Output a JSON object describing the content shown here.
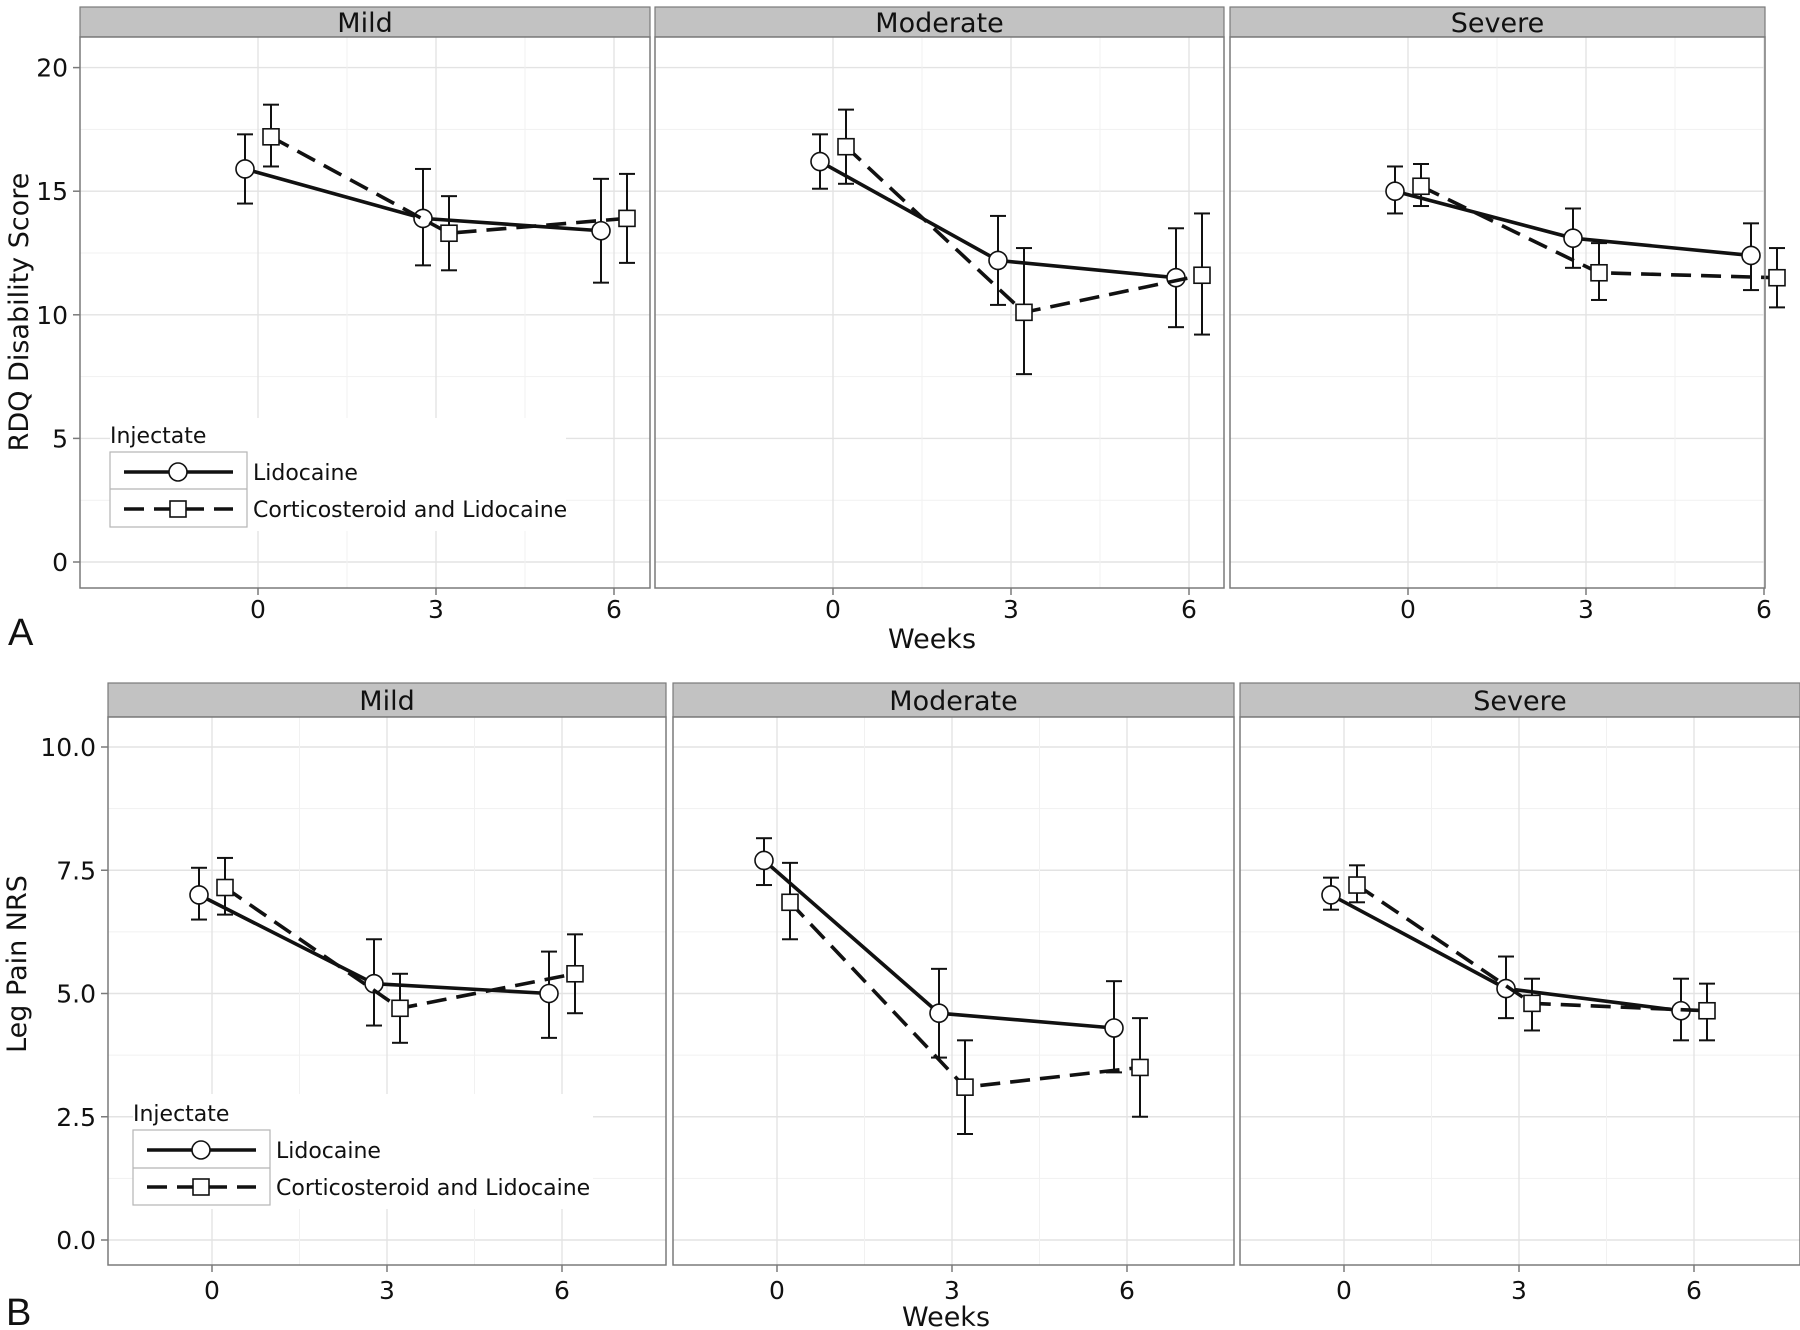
{
  "colors": {
    "strip_fill": "#c2c2c2",
    "panel_border": "#7a7a7a",
    "grid_major": "#e3e3e3",
    "grid_minor": "#f1f1f1",
    "series": "#111111",
    "marker_fill": "#ffffff"
  },
  "legend": {
    "title": "Injectate",
    "items": [
      {
        "label": "Lidocaine",
        "marker": "circle",
        "line": "solid"
      },
      {
        "label": "Corticosteroid and Lidocaine",
        "marker": "square",
        "line": "dashed"
      }
    ]
  },
  "chart_data": [
    {
      "type": "line",
      "panel_label": "A",
      "xlabel": "Weeks",
      "ylabel": "RDQ Disability Score",
      "x": [
        0,
        3,
        6
      ],
      "xticks": [
        "0",
        "3",
        "6"
      ],
      "yticks": [
        0,
        5,
        10,
        15,
        20
      ],
      "ylim": [
        -1,
        21
      ],
      "grid": true,
      "legend_position": "bottom-left",
      "facets": [
        {
          "name": "Mild",
          "series": [
            {
              "name": "Lidocaine",
              "values": [
                15.9,
                13.9,
                13.4
              ],
              "lower": [
                14.5,
                12.0,
                11.3
              ],
              "upper": [
                17.3,
                15.9,
                15.5
              ]
            },
            {
              "name": "Corticosteroid and Lidocaine",
              "values": [
                17.2,
                13.3,
                13.9
              ],
              "lower": [
                16.0,
                11.8,
                12.1
              ],
              "upper": [
                18.5,
                14.8,
                15.7
              ]
            }
          ]
        },
        {
          "name": "Moderate",
          "series": [
            {
              "name": "Lidocaine",
              "values": [
                16.2,
                12.2,
                11.5
              ],
              "lower": [
                15.1,
                10.4,
                9.5
              ],
              "upper": [
                17.3,
                14.0,
                13.5
              ]
            },
            {
              "name": "Corticosteroid and Lidocaine",
              "values": [
                16.8,
                10.1,
                11.6
              ],
              "lower": [
                15.3,
                7.6,
                9.2
              ],
              "upper": [
                18.3,
                12.7,
                14.1
              ]
            }
          ]
        },
        {
          "name": "Severe",
          "series": [
            {
              "name": "Lidocaine",
              "values": [
                15.0,
                13.1,
                12.4
              ],
              "lower": [
                14.1,
                11.9,
                11.0
              ],
              "upper": [
                16.0,
                14.3,
                13.7
              ]
            },
            {
              "name": "Corticosteroid and Lidocaine",
              "values": [
                15.2,
                11.7,
                11.5
              ],
              "lower": [
                14.4,
                10.6,
                10.3
              ],
              "upper": [
                16.1,
                12.9,
                12.7
              ]
            }
          ]
        }
      ]
    },
    {
      "type": "line",
      "panel_label": "B",
      "xlabel": "Weeks",
      "ylabel": "Leg Pain NRS",
      "x": [
        0,
        3,
        6
      ],
      "xticks": [
        "0",
        "3",
        "6"
      ],
      "yticks": [
        0,
        2.5,
        5,
        7.5,
        10
      ],
      "yticklabels": [
        "0.0",
        "2.5",
        "5.0",
        "7.5",
        "10.0"
      ],
      "ylim": [
        -0.5,
        10.6
      ],
      "grid": true,
      "legend_position": "bottom-left",
      "facets": [
        {
          "name": "Mild",
          "series": [
            {
              "name": "Lidocaine",
              "values": [
                7.0,
                5.2,
                5.0
              ],
              "lower": [
                6.5,
                4.35,
                4.1
              ],
              "upper": [
                7.55,
                6.1,
                5.85
              ]
            },
            {
              "name": "Corticosteroid and Lidocaine",
              "values": [
                7.15,
                4.7,
                5.4
              ],
              "lower": [
                6.6,
                4.0,
                4.6
              ],
              "upper": [
                7.75,
                5.4,
                6.2
              ]
            }
          ]
        },
        {
          "name": "Moderate",
          "series": [
            {
              "name": "Lidocaine",
              "values": [
                7.7,
                4.6,
                4.3
              ],
              "lower": [
                7.2,
                3.7,
                3.4
              ],
              "upper": [
                8.15,
                5.5,
                5.25
              ]
            },
            {
              "name": "Corticosteroid and Lidocaine",
              "values": [
                6.85,
                3.1,
                3.5
              ],
              "lower": [
                6.1,
                2.15,
                2.5
              ],
              "upper": [
                7.65,
                4.05,
                4.5
              ]
            }
          ]
        },
        {
          "name": "Severe",
          "series": [
            {
              "name": "Lidocaine",
              "values": [
                7.0,
                5.1,
                4.65
              ],
              "lower": [
                6.7,
                4.5,
                4.05
              ],
              "upper": [
                7.35,
                5.75,
                5.3
              ]
            },
            {
              "name": "Corticosteroid and Lidocaine",
              "values": [
                7.2,
                4.8,
                4.65
              ],
              "lower": [
                6.85,
                4.25,
                4.05
              ],
              "upper": [
                7.6,
                5.3,
                5.2
              ]
            }
          ]
        }
      ]
    }
  ]
}
